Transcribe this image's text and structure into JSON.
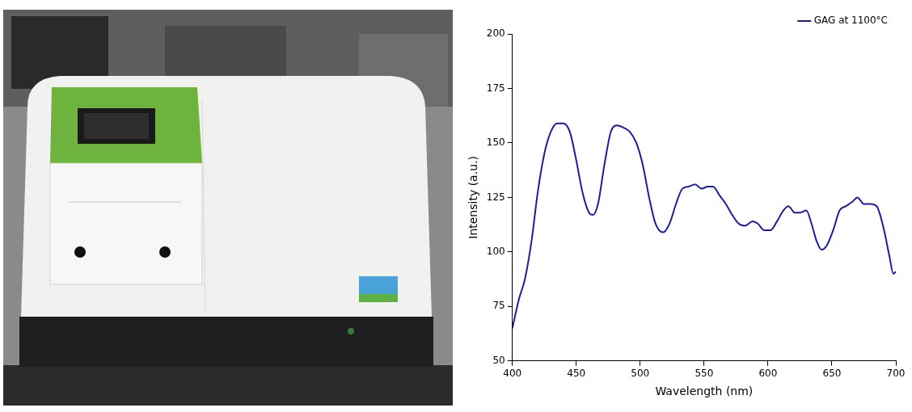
{
  "chart_data": {
    "type": "line",
    "x_label": "Wavelength (nm)",
    "y_label": "Intensity (a.u.)",
    "x": [
      400,
      405,
      410,
      415,
      420,
      425,
      430,
      435,
      440,
      445,
      450,
      455,
      460,
      463,
      467,
      472,
      477,
      482,
      487,
      492,
      497,
      502,
      507,
      512,
      518,
      523,
      528,
      533,
      538,
      543,
      548,
      553,
      557,
      562,
      567,
      572,
      577,
      582,
      588,
      592,
      597,
      602,
      607,
      612,
      616,
      621,
      625,
      630,
      634,
      638,
      642,
      646,
      651,
      656,
      661,
      666,
      670,
      675,
      680,
      685,
      690,
      695,
      698,
      700
    ],
    "series": [
      {
        "name": "GAG at 1100°C",
        "color": "#1c1c9c",
        "line_style": "solid",
        "values": [
          65,
          78,
          88,
          105,
          128,
          145,
          155,
          159,
          159,
          155,
          142,
          127,
          118,
          117,
          122,
          140,
          155,
          158,
          157,
          155,
          150,
          140,
          125,
          113,
          109,
          113,
          122,
          129,
          130,
          131,
          129,
          130,
          130,
          126,
          122,
          117,
          113,
          112,
          114,
          113,
          110,
          110,
          114,
          119,
          121,
          118,
          118,
          119,
          113,
          105,
          101,
          103,
          110,
          119,
          121,
          123,
          125,
          122,
          122,
          121,
          112,
          98,
          90,
          91
        ]
      }
    ],
    "xlim": [
      400,
      700
    ],
    "xticks": [
      400,
      450,
      500,
      550,
      600,
      650,
      700
    ],
    "ylim": [
      50,
      200
    ],
    "yticks": [
      50,
      75,
      100,
      125,
      150,
      175,
      200
    ],
    "grid": false,
    "legend": "top-right"
  }
}
